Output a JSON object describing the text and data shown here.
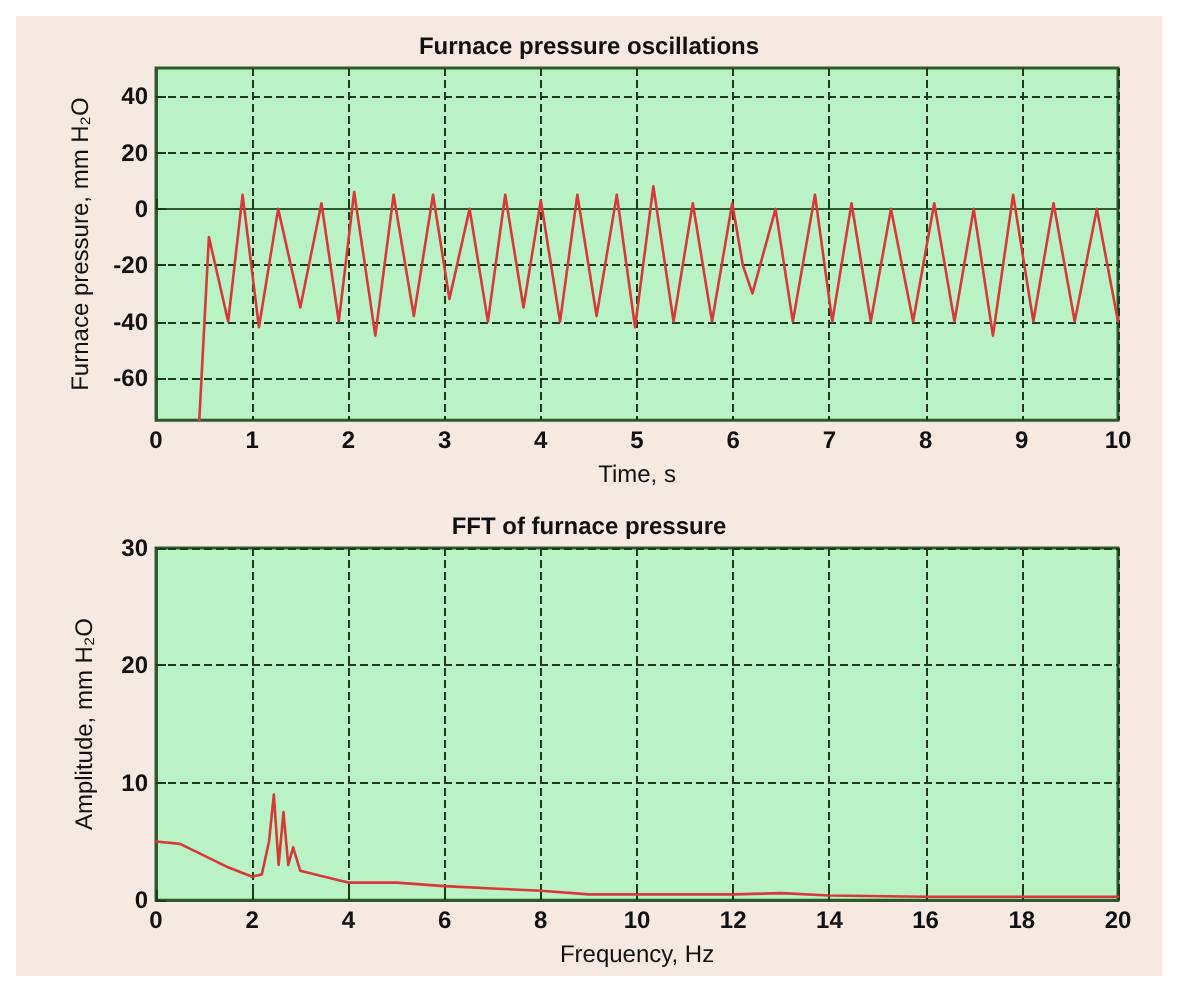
{
  "chart_data": [
    {
      "type": "line",
      "title": "Furnace pressure oscillations",
      "xlabel": "Time, s",
      "ylabel": "Furnace pressure, mm H₂O",
      "xlim": [
        0,
        10
      ],
      "ylim": [
        -75,
        50
      ],
      "xticks": [
        0,
        1,
        2,
        3,
        4,
        5,
        6,
        7,
        8,
        9,
        10
      ],
      "yticks": [
        -60,
        -40,
        -20,
        0,
        20,
        40
      ],
      "grid": true,
      "marker": "none",
      "line_style": "solid",
      "series": [
        {
          "color": "#d83838",
          "x": [
            0.45,
            0.55,
            0.75,
            0.9,
            1.07,
            1.27,
            1.5,
            1.72,
            1.9,
            2.06,
            2.28,
            2.47,
            2.68,
            2.88,
            3.05,
            3.26,
            3.45,
            3.63,
            3.82,
            4.0,
            4.2,
            4.38,
            4.58,
            4.79,
            4.98,
            5.17,
            5.38,
            5.58,
            5.78,
            5.99,
            6.1,
            6.2,
            6.44,
            6.62,
            6.85,
            7.03,
            7.23,
            7.43,
            7.64,
            7.87,
            8.09,
            8.3,
            8.5,
            8.7,
            8.91,
            9.12,
            9.33,
            9.55,
            9.78,
            10
          ],
          "values": [
            -75,
            -10,
            -40,
            5,
            -42,
            0,
            -35,
            2,
            -40,
            6,
            -45,
            5,
            -38,
            5,
            -32,
            0,
            -40,
            5,
            -35,
            3,
            -40,
            5,
            -38,
            5,
            -42,
            8,
            -40,
            2,
            -40,
            2,
            -20,
            -30,
            0,
            -40,
            5,
            -40,
            2,
            -40,
            0,
            -40,
            2,
            -40,
            0,
            -45,
            5,
            -40,
            2,
            -40,
            0,
            -40
          ]
        }
      ]
    },
    {
      "type": "line",
      "title": "FFT of furnace pressure",
      "xlabel": "Frequency, Hz",
      "ylabel": "Amplitude, mm H₂O",
      "xlim": [
        0,
        20
      ],
      "ylim": [
        0,
        30
      ],
      "xticks": [
        0,
        2,
        4,
        6,
        8,
        10,
        12,
        14,
        16,
        18,
        20
      ],
      "yticks": [
        0,
        10,
        20,
        30
      ],
      "grid": true,
      "marker": "none",
      "line_style": "solid",
      "series": [
        {
          "color": "#d83838",
          "x": [
            0,
            0.5,
            1,
            1.5,
            2,
            2.2,
            2.35,
            2.45,
            2.55,
            2.65,
            2.75,
            2.85,
            3,
            3.5,
            4,
            5,
            6,
            7,
            8,
            9,
            10,
            12,
            13,
            14,
            16,
            20
          ],
          "values": [
            5,
            4.8,
            3.8,
            2.8,
            2,
            2.2,
            5,
            9,
            3,
            7.5,
            3,
            4.5,
            2.5,
            2,
            1.5,
            1.5,
            1.2,
            1,
            0.8,
            0.5,
            0.5,
            0.5,
            0.6,
            0.4,
            0.3,
            0.3
          ]
        }
      ]
    }
  ]
}
